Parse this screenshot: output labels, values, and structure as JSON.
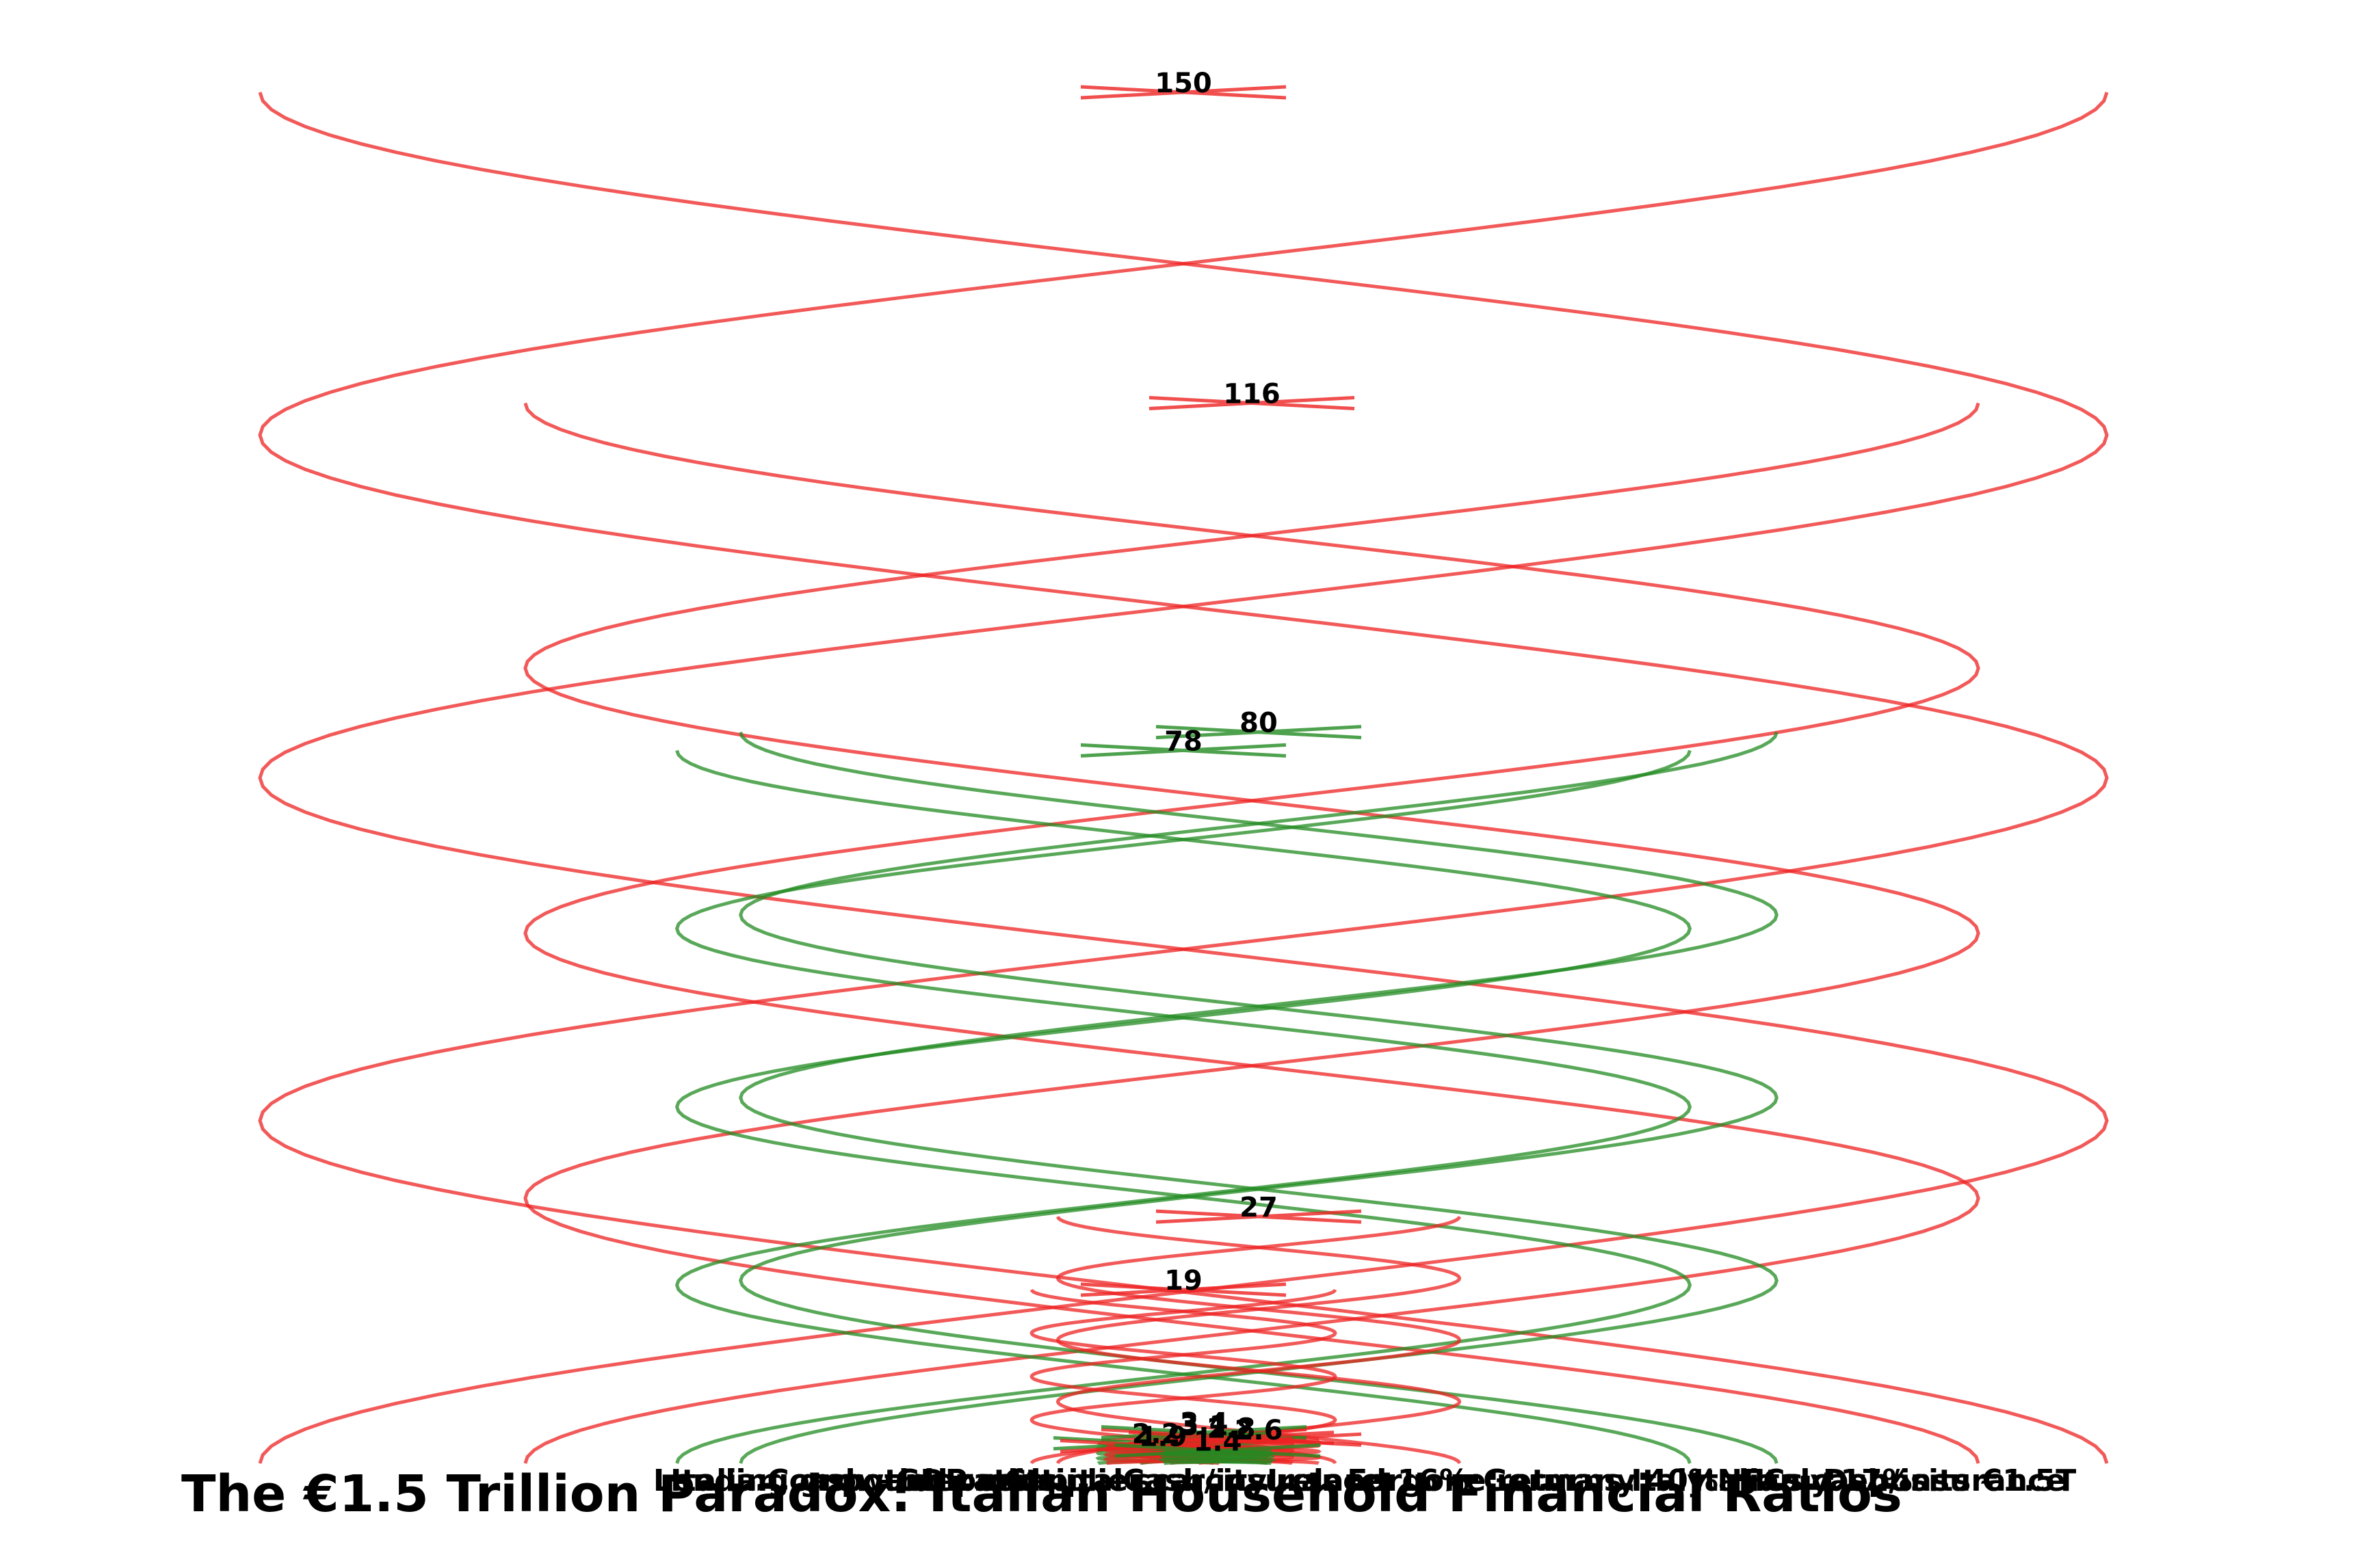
{
  "chart_data": {
    "type": "violin",
    "title": "The €1.5 Trillion Paradox: Italian Household Financial Ratios",
    "xlabel": "",
    "ylabel": "",
    "grid": false,
    "legend": "none",
    "categories": [
      "Italian cash + deposits",
      "Lending growth",
      "Compound ratio",
      "GDP multiplier",
      "Capital scarcity",
      "Cash/insurance",
      "Ireland 16%",
      "Forgone returns",
      "Germany 40%",
      "Italy NFCs",
      "Italy 17%",
      "Deposits €1.5T",
      "Italian cash/insurance"
    ],
    "values": [
      150,
      116,
      80,
      78,
      27,
      19,
      3.1,
      2.6,
      3.4,
      2.2,
      2.8,
      1.9,
      1.4
    ],
    "favorable": [
      false,
      false,
      true,
      true,
      false,
      false,
      false,
      false,
      true,
      true,
      false,
      false,
      true
    ],
    "colors": {
      "favorable": "#228b22",
      "unfavorable": "#ee2222"
    }
  }
}
